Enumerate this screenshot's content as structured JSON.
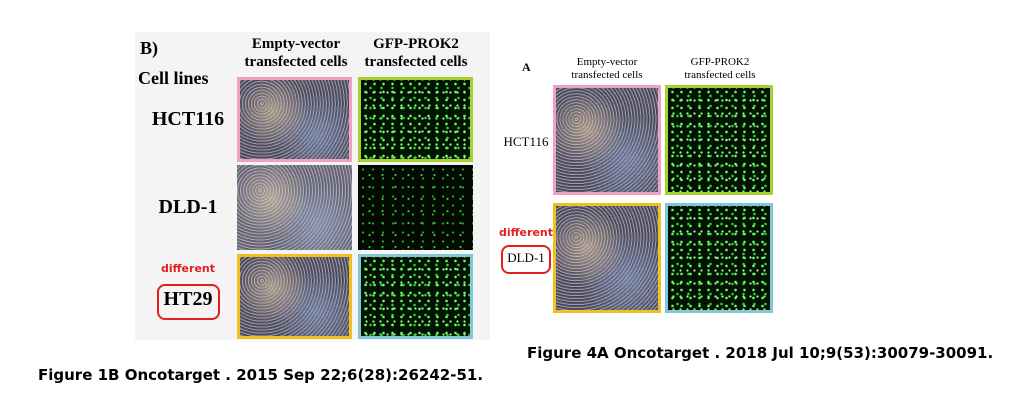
{
  "left": {
    "label": "B)",
    "row_header": "Cell lines",
    "columns": [
      [
        "Empty-vector",
        "transfected cells"
      ],
      [
        "GFP-PROK2",
        "transfected cells"
      ]
    ],
    "rows": [
      "HCT116",
      "DLD-1",
      "HT29"
    ],
    "annotation": "different",
    "caption": "Figure 1B Oncotarget . 2015 Sep 22;6(28):26242-51."
  },
  "right": {
    "label": "A",
    "columns": [
      [
        "Empty-vector",
        "transfected cells"
      ],
      [
        "GFP-PROK2",
        "transfected cells"
      ]
    ],
    "rows": [
      "HCT116",
      "DLD-1"
    ],
    "annotation": "different",
    "caption": "Figure 4A Oncotarget . 2018 Jul 10;9(53):30079-30091."
  }
}
